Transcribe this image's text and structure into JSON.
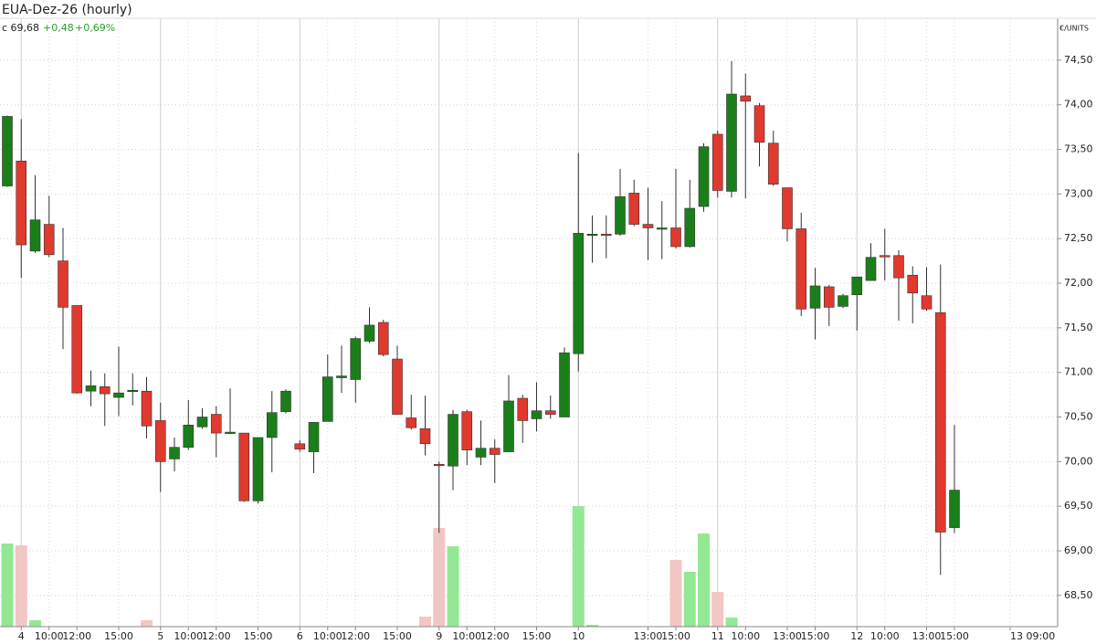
{
  "chart_data": {
    "type": "candlestick",
    "title": "EUA-Dez-26 (hourly)",
    "last_close": "c 69,68",
    "change": "+0,48",
    "change_percent": "+0,69%",
    "y_unit": "€/UNITS",
    "up_color": "#1a7f1a",
    "down_color": "#e0392e",
    "volume_up_color": "#93e893",
    "volume_down_color": "#f2c6c3",
    "grid": true,
    "categories": [
      null,
      "4",
      null,
      "10:00",
      null,
      "12:00",
      null,
      null,
      "15:00",
      null,
      null,
      "5",
      null,
      "10:00",
      null,
      "12:00",
      null,
      null,
      "15:00",
      null,
      null,
      "6",
      null,
      "10:00",
      null,
      "12:00",
      null,
      null,
      "15:00",
      null,
      null,
      "9",
      null,
      "10:00",
      null,
      "12:00",
      null,
      null,
      "15:00",
      null,
      null,
      "10",
      null,
      null,
      null,
      null,
      "13:00",
      null,
      "15:00",
      null,
      null,
      "11",
      null,
      "10:00",
      null,
      null,
      "13:00",
      null,
      "15:00",
      null,
      null,
      "12",
      null,
      "10:00",
      null,
      null,
      "13:00",
      null,
      "15:00",
      null,
      null,
      null,
      "13 09:00",
      null,
      null,
      null
    ],
    "open": [
      73.09,
      73.37,
      72.36,
      72.66,
      72.25,
      71.75,
      70.79,
      70.84,
      70.72,
      70.8,
      70.79,
      70.46,
      70.03,
      70.16,
      70.39,
      70.53,
      70.33,
      70.32,
      69.56,
      70.27,
      70.56,
      70.2,
      70.11,
      70.45,
      70.94,
      70.92,
      71.35,
      71.56,
      71.15,
      70.49,
      70.37,
      69.97,
      69.95,
      70.56,
      70.05,
      70.15,
      70.11,
      70.71,
      70.48,
      70.57,
      70.5,
      71.21,
      72.54,
      72.55,
      72.55,
      73.01,
      72.66,
      72.62,
      72.62,
      72.41,
      72.86,
      73.67,
      73.03,
      74.1,
      73.99,
      73.57,
      73.07,
      72.61,
      71.72,
      71.96,
      71.74,
      71.87,
      72.03,
      72.31,
      72.31,
      72.09,
      71.86,
      71.67,
      69.26,
      null,
      null,
      null,
      null,
      null,
      null,
      null
    ],
    "high": [
      73.88,
      73.84,
      73.21,
      72.98,
      72.62,
      71.75,
      71.02,
      70.99,
      71.29,
      70.99,
      70.95,
      70.66,
      70.27,
      70.69,
      70.6,
      70.62,
      70.82,
      70.32,
      70.27,
      70.79,
      70.81,
      70.24,
      70.44,
      71.2,
      71.3,
      71.4,
      71.73,
      71.59,
      71.3,
      70.75,
      70.74,
      70.0,
      70.58,
      70.58,
      70.46,
      70.25,
      70.97,
      70.75,
      70.89,
      70.74,
      71.28,
      73.46,
      72.76,
      72.76,
      73.28,
      73.16,
      73.07,
      72.92,
      73.28,
      73.16,
      73.57,
      73.71,
      74.49,
      74.35,
      74.02,
      73.71,
      73.07,
      72.79,
      72.17,
      71.98,
      71.88,
      72.07,
      72.45,
      72.61,
      72.37,
      72.19,
      72.18,
      72.21,
      70.41,
      null,
      null,
      null,
      null,
      null,
      null,
      null
    ],
    "low": [
      73.08,
      72.06,
      72.34,
      72.29,
      71.26,
      70.76,
      70.62,
      70.4,
      70.51,
      70.63,
      70.26,
      69.66,
      69.89,
      70.13,
      70.37,
      70.05,
      70.31,
      69.55,
      69.53,
      69.88,
      70.54,
      70.11,
      69.87,
      70.45,
      70.77,
      70.66,
      71.33,
      71.18,
      70.53,
      70.36,
      70.07,
      69.2,
      69.68,
      69.96,
      69.96,
      69.76,
      70.11,
      70.21,
      70.34,
      70.48,
      70.5,
      71.01,
      72.23,
      72.28,
      72.53,
      72.64,
      72.26,
      72.27,
      72.39,
      72.4,
      72.8,
      72.96,
      72.96,
      72.95,
      73.31,
      73.09,
      72.47,
      71.63,
      71.37,
      71.52,
      71.72,
      71.47,
      72.03,
      72.03,
      71.58,
      71.55,
      71.69,
      68.73,
      69.2,
      null,
      null,
      null,
      null,
      null,
      null,
      null
    ],
    "close": [
      73.87,
      72.43,
      72.71,
      72.32,
      71.73,
      70.77,
      70.85,
      70.76,
      70.77,
      70.8,
      70.4,
      70.0,
      70.16,
      70.41,
      70.5,
      70.32,
      70.33,
      69.56,
      70.27,
      70.55,
      70.79,
      70.14,
      70.44,
      70.95,
      70.96,
      71.38,
      71.53,
      71.2,
      70.53,
      70.38,
      70.2,
      69.96,
      70.53,
      70.13,
      70.15,
      70.08,
      70.68,
      70.46,
      70.57,
      70.53,
      71.22,
      72.56,
      72.55,
      72.54,
      72.97,
      72.66,
      72.62,
      72.62,
      72.41,
      72.84,
      73.53,
      73.04,
      74.12,
      74.04,
      73.58,
      73.11,
      72.61,
      71.71,
      71.97,
      71.73,
      71.86,
      72.07,
      72.29,
      72.3,
      72.06,
      71.89,
      71.71,
      69.21,
      69.68,
      null,
      null,
      null,
      null,
      null,
      null,
      null
    ],
    "volume": [
      91,
      89,
      7,
      0,
      0,
      0,
      0,
      0,
      0,
      0,
      7,
      0,
      0,
      0,
      0,
      0,
      0,
      0,
      0,
      0,
      0,
      0,
      0,
      0,
      0,
      0,
      0,
      0,
      0,
      0,
      11,
      108,
      88,
      0,
      0,
      0,
      0,
      0,
      0,
      0,
      0,
      132,
      2,
      0,
      0,
      0,
      0,
      0,
      73,
      60,
      102,
      38,
      10,
      0,
      0,
      0,
      0,
      0,
      0,
      0,
      0,
      0,
      0,
      0,
      0,
      0,
      0,
      0,
      0,
      null,
      null,
      null,
      null,
      null,
      null,
      null
    ],
    "ylim": [
      68.15,
      74.97
    ],
    "yticks": [
      {
        "value": 68.5,
        "label": "68,50"
      },
      {
        "value": 69,
        "label": "69,00"
      },
      {
        "value": 69.5,
        "label": "69,50"
      },
      {
        "value": 70,
        "label": "70,00"
      },
      {
        "value": 70.5,
        "label": "70,50"
      },
      {
        "value": 71,
        "label": "71,00"
      },
      {
        "value": 71.5,
        "label": "71,50"
      },
      {
        "value": 72,
        "label": "72,00"
      },
      {
        "value": 72.5,
        "label": "72,50"
      },
      {
        "value": 73,
        "label": "73,00"
      },
      {
        "value": 73.5,
        "label": "73,50"
      },
      {
        "value": 74,
        "label": "74,00"
      },
      {
        "value": 74.5,
        "label": "74,50"
      }
    ]
  }
}
